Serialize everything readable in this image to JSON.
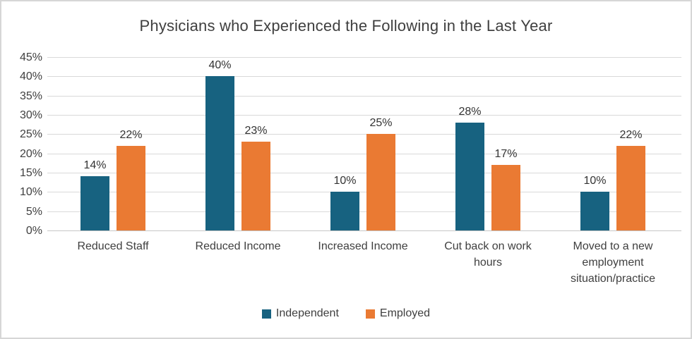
{
  "chart_data": {
    "type": "bar",
    "title": "Physicians who Experienced the Following in the Last Year",
    "categories": [
      "Reduced Staff",
      "Reduced Income",
      "Increased Income",
      "Cut back on work hours",
      "Moved to a new employment situation/practice"
    ],
    "series": [
      {
        "name": "Independent",
        "color": "#176280",
        "values": [
          14,
          40,
          10,
          28,
          10
        ]
      },
      {
        "name": "Employed",
        "color": "#EA7A33",
        "values": [
          22,
          23,
          25,
          17,
          22
        ]
      }
    ],
    "data_labels": [
      [
        "14%",
        "40%",
        "10%",
        "28%",
        "10%"
      ],
      [
        "22%",
        "23%",
        "25%",
        "17%",
        "22%"
      ]
    ],
    "value_suffix": "%",
    "yticks": [
      "45%",
      "40%",
      "35%",
      "30%",
      "25%",
      "20%",
      "15%",
      "10%",
      "5%",
      "0%"
    ],
    "ylim": [
      0,
      45
    ],
    "grid": true,
    "legend_position": "bottom-center",
    "xlabel": "",
    "ylabel": ""
  }
}
